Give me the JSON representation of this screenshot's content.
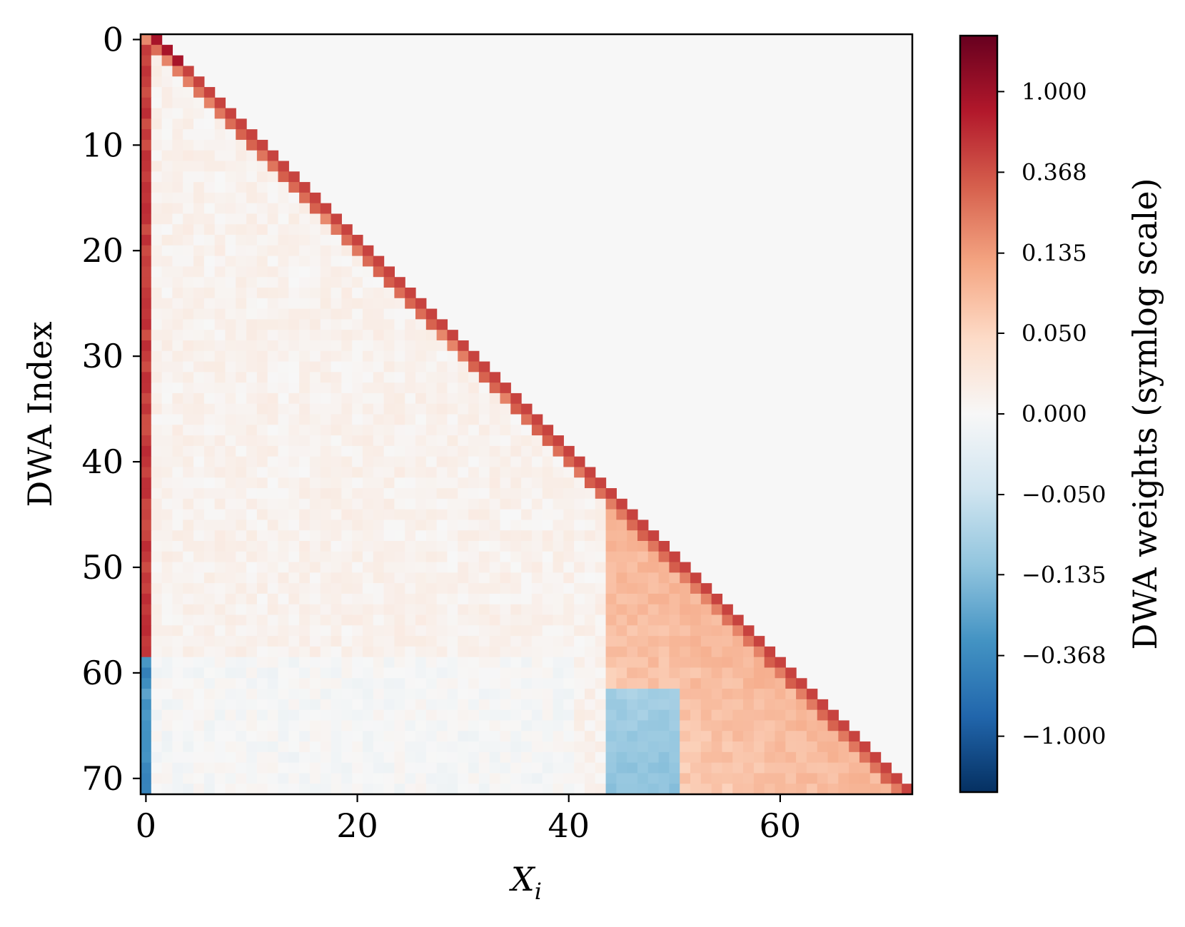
{
  "chart_data": {
    "type": "heatmap",
    "title": "",
    "xlabel": "X_i",
    "ylabel": "DWA Index",
    "colorbar_label": "DWA weights (symlog scale)",
    "colorbar_scale": "symlog",
    "colormap": "RdBu_r",
    "mask_color": "#f7f7f7",
    "x_range": [
      0,
      72
    ],
    "y_range": [
      0,
      71
    ],
    "x_ticks": [
      0,
      20,
      40,
      60
    ],
    "y_ticks": [
      0,
      10,
      20,
      30,
      40,
      50,
      60,
      70
    ],
    "x_tick_labels": [
      "0",
      "20",
      "40",
      "60"
    ],
    "y_tick_labels": [
      "0",
      "10",
      "20",
      "30",
      "40",
      "50",
      "60",
      "70"
    ],
    "colorbar_ticks": [
      1.0,
      0.368,
      0.135,
      0.05,
      0.0,
      -0.05,
      -0.135,
      -0.368,
      -1.0
    ],
    "colorbar_tick_labels": [
      "1.000",
      "0.368",
      "0.135",
      "0.050",
      "0.000",
      "−0.050",
      "−0.135",
      "−0.368",
      "−1.000"
    ],
    "colorbar_range": [
      -2.0,
      2.0
    ],
    "matrix_shape": [
      72,
      73
    ],
    "structure": "lower-triangular: cell (row r, column c) is shown for c <= r + 1, masked otherwise",
    "description_values": {
      "diagonal_superdiagonal": 0.45,
      "diagonal_rows_0_2": 0.9,
      "first_column_rows_0_58": 0.5,
      "first_column_rows_59_71": -0.35,
      "interior_typical": 0.01,
      "block_rows_45_71_cols_44_70": 0.09,
      "block_rows_62_71_cols_44_50": -0.09
    }
  }
}
